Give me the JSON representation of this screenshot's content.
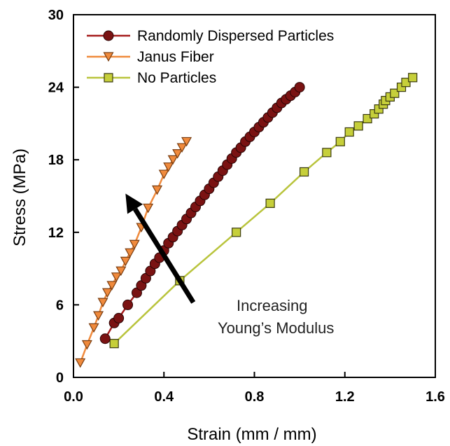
{
  "chart_data": {
    "type": "line",
    "title": "",
    "xlabel": "Strain (mm / mm)",
    "ylabel": "Stress (MPa)",
    "xlim": [
      0,
      1.6
    ],
    "ylim": [
      0,
      30
    ],
    "xticks": [
      "0.0",
      "0.4",
      "0.8",
      "1.2",
      "1.6"
    ],
    "yticks": [
      "0",
      "6",
      "12",
      "18",
      "24",
      "30"
    ],
    "grid": false,
    "legend_position": "top-left",
    "series": [
      {
        "name": "Randomly Dispersed Particles",
        "marker": "circle",
        "color": "#a51c1c",
        "marker_color": "#7a1212",
        "x": [
          0.14,
          0.18,
          0.2,
          0.24,
          0.28,
          0.3,
          0.32,
          0.34,
          0.36,
          0.38,
          0.4,
          0.42,
          0.44,
          0.46,
          0.48,
          0.5,
          0.52,
          0.54,
          0.56,
          0.58,
          0.6,
          0.62,
          0.64,
          0.66,
          0.68,
          0.7,
          0.72,
          0.74,
          0.76,
          0.78,
          0.8,
          0.82,
          0.84,
          0.86,
          0.88,
          0.9,
          0.92,
          0.94,
          0.96,
          0.98,
          1.0
        ],
        "y": [
          3.2,
          4.5,
          4.9,
          6.0,
          7.0,
          7.6,
          8.2,
          8.8,
          9.4,
          9.9,
          10.5,
          11.1,
          11.6,
          12.1,
          12.6,
          13.1,
          13.6,
          14.1,
          14.6,
          15.1,
          15.6,
          16.1,
          16.6,
          17.1,
          17.6,
          18.1,
          18.6,
          19.0,
          19.5,
          19.9,
          20.3,
          20.7,
          21.1,
          21.5,
          21.9,
          22.3,
          22.7,
          23.0,
          23.3,
          23.6,
          24.0
        ]
      },
      {
        "name": "Janus Fiber",
        "marker": "triangle-down",
        "color": "#f08a3c",
        "marker_color": "#f08a3c",
        "x": [
          0.03,
          0.06,
          0.09,
          0.11,
          0.13,
          0.15,
          0.17,
          0.19,
          0.21,
          0.23,
          0.25,
          0.27,
          0.3,
          0.33,
          0.37,
          0.4,
          0.42,
          0.44,
          0.46,
          0.48,
          0.5
        ],
        "y": [
          1.2,
          2.7,
          4.1,
          5.1,
          6.2,
          7.0,
          7.6,
          8.3,
          8.8,
          9.6,
          10.3,
          11.0,
          12.4,
          14.0,
          15.5,
          16.8,
          17.4,
          18.0,
          18.5,
          19.0,
          19.5
        ]
      },
      {
        "name": "No Particles",
        "marker": "square",
        "color": "#b9c43c",
        "marker_color": "#c6cf3a",
        "x": [
          0.18,
          0.47,
          0.72,
          0.87,
          1.02,
          1.12,
          1.18,
          1.22,
          1.26,
          1.3,
          1.33,
          1.35,
          1.37,
          1.38,
          1.4,
          1.42,
          1.45,
          1.47,
          1.5
        ],
        "y": [
          2.8,
          8.0,
          12.0,
          14.4,
          17.0,
          18.6,
          19.5,
          20.3,
          20.8,
          21.4,
          21.8,
          22.2,
          22.6,
          22.9,
          23.2,
          23.5,
          24.0,
          24.4,
          24.8
        ]
      }
    ],
    "annotation": {
      "lines": [
        "Increasing",
        "Young’s Modulus"
      ],
      "arrow_from": [
        0.53,
        6.2
      ],
      "arrow_to": [
        0.23,
        15.2
      ]
    }
  }
}
